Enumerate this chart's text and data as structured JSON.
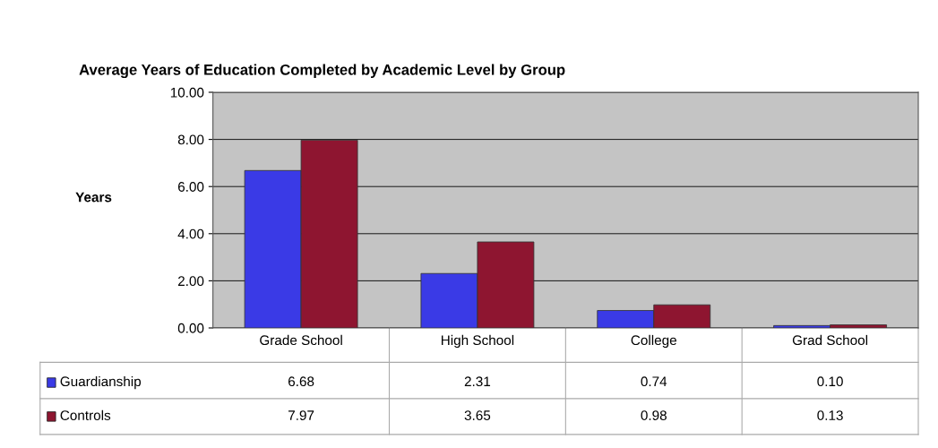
{
  "chart_data": {
    "type": "bar",
    "title": "Average Years of Education Completed by Academic Level by Group",
    "ylabel": "Years",
    "categories": [
      "Grade School",
      "High School",
      "College",
      "Grad School"
    ],
    "series": [
      {
        "name": "Guardianship",
        "color": "#3a3ae6",
        "values": [
          6.68,
          2.31,
          0.74,
          0.1
        ],
        "value_labels": [
          "6.68",
          "2.31",
          "0.74",
          "0.10"
        ]
      },
      {
        "name": "Controls",
        "color": "#8e1530",
        "values": [
          7.97,
          3.65,
          0.98,
          0.13
        ],
        "value_labels": [
          "7.97",
          "3.65",
          "0.98",
          "0.13"
        ]
      }
    ],
    "ylim": [
      0,
      10
    ],
    "yticks": [
      {
        "value": 0,
        "label": "0.00"
      },
      {
        "value": 2,
        "label": "2.00"
      },
      {
        "value": 4,
        "label": "4.00"
      },
      {
        "value": 6,
        "label": "6.00"
      },
      {
        "value": 8,
        "label": "8.00"
      },
      {
        "value": 10,
        "label": "10.00"
      }
    ],
    "grid": "y",
    "legend": "bottom"
  }
}
